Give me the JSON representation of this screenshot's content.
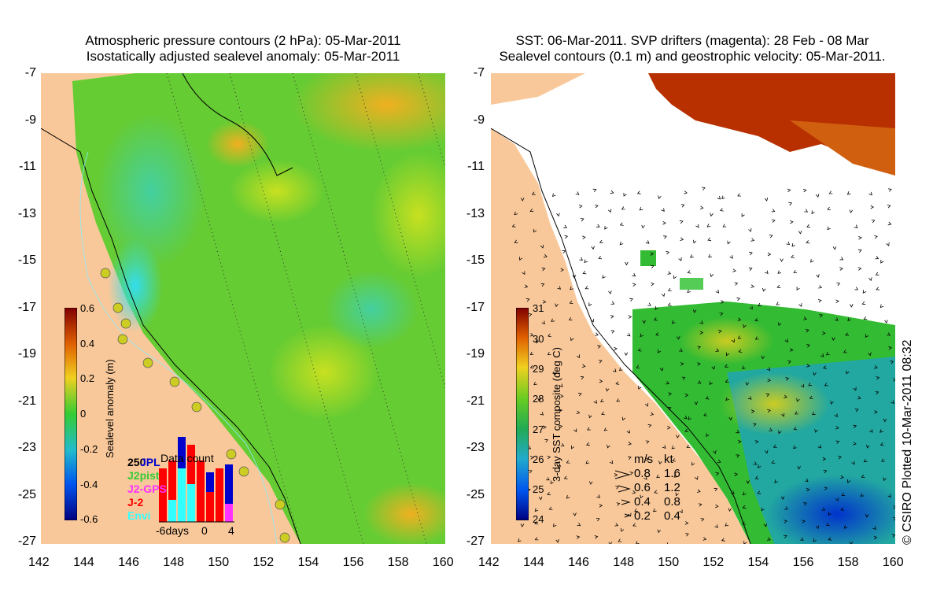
{
  "left_panel": {
    "title_line1": "Atmospheric pressure contours (2 hPa): 05-Mar-2011",
    "title_line2": "Isostatically adjusted sealevel anomaly: 05-Mar-2011",
    "colorbar_label": "Sealevel anomaly (m)",
    "colorbar_ticks": [
      "0.6",
      "0.4",
      "0.2",
      "0",
      "-0.2",
      "-0.4",
      "-0.6"
    ],
    "inset": {
      "title": "Data count",
      "count": "250",
      "missions": [
        "JPL",
        "J2pist",
        "J2-GPS",
        "J-2",
        "Envi"
      ],
      "mission_colors": [
        "#0000cc",
        "#33cc33",
        "#ff33ff",
        "#ff0000",
        "#33ffff"
      ],
      "xticks": [
        "-6days",
        "0",
        "4"
      ]
    }
  },
  "right_panel": {
    "title_line1": "SST: 06-Mar-2011. SVP drifters (magenta): 28 Feb - 08 Mar",
    "title_line2": "Sealevel contours (0.1 m) and geostrophic velocity: 05-Mar-2011.",
    "colorbar_label": "3-day SST composite (deg C)",
    "colorbar_ticks": [
      "31",
      "30",
      "29",
      "28",
      "27",
      "26",
      "25",
      "24"
    ],
    "velocity_legend": {
      "header_ms": "m/s",
      "header_kt": "kt",
      "rows": [
        {
          "ms": "0.8",
          "kt": "1.6"
        },
        {
          "ms": "0.6",
          "kt": "1.2"
        },
        {
          "ms": "0.4",
          "kt": "0.8"
        },
        {
          "ms": "0.2",
          "kt": "0.4"
        }
      ]
    }
  },
  "axes": {
    "lat_ticks": [
      "-7",
      "-9",
      "-11",
      "-13",
      "-15",
      "-17",
      "-19",
      "-21",
      "-23",
      "-25",
      "-27"
    ],
    "lon_ticks": [
      "142",
      "144",
      "146",
      "148",
      "150",
      "152",
      "154",
      "156",
      "158",
      "160"
    ]
  },
  "credit": "© CSIRO Plotted 10-Mar-2011 08:32",
  "colors": {
    "land": "#f9c89a",
    "sla_zero": "#66cc33",
    "warm": "#f0c030"
  }
}
